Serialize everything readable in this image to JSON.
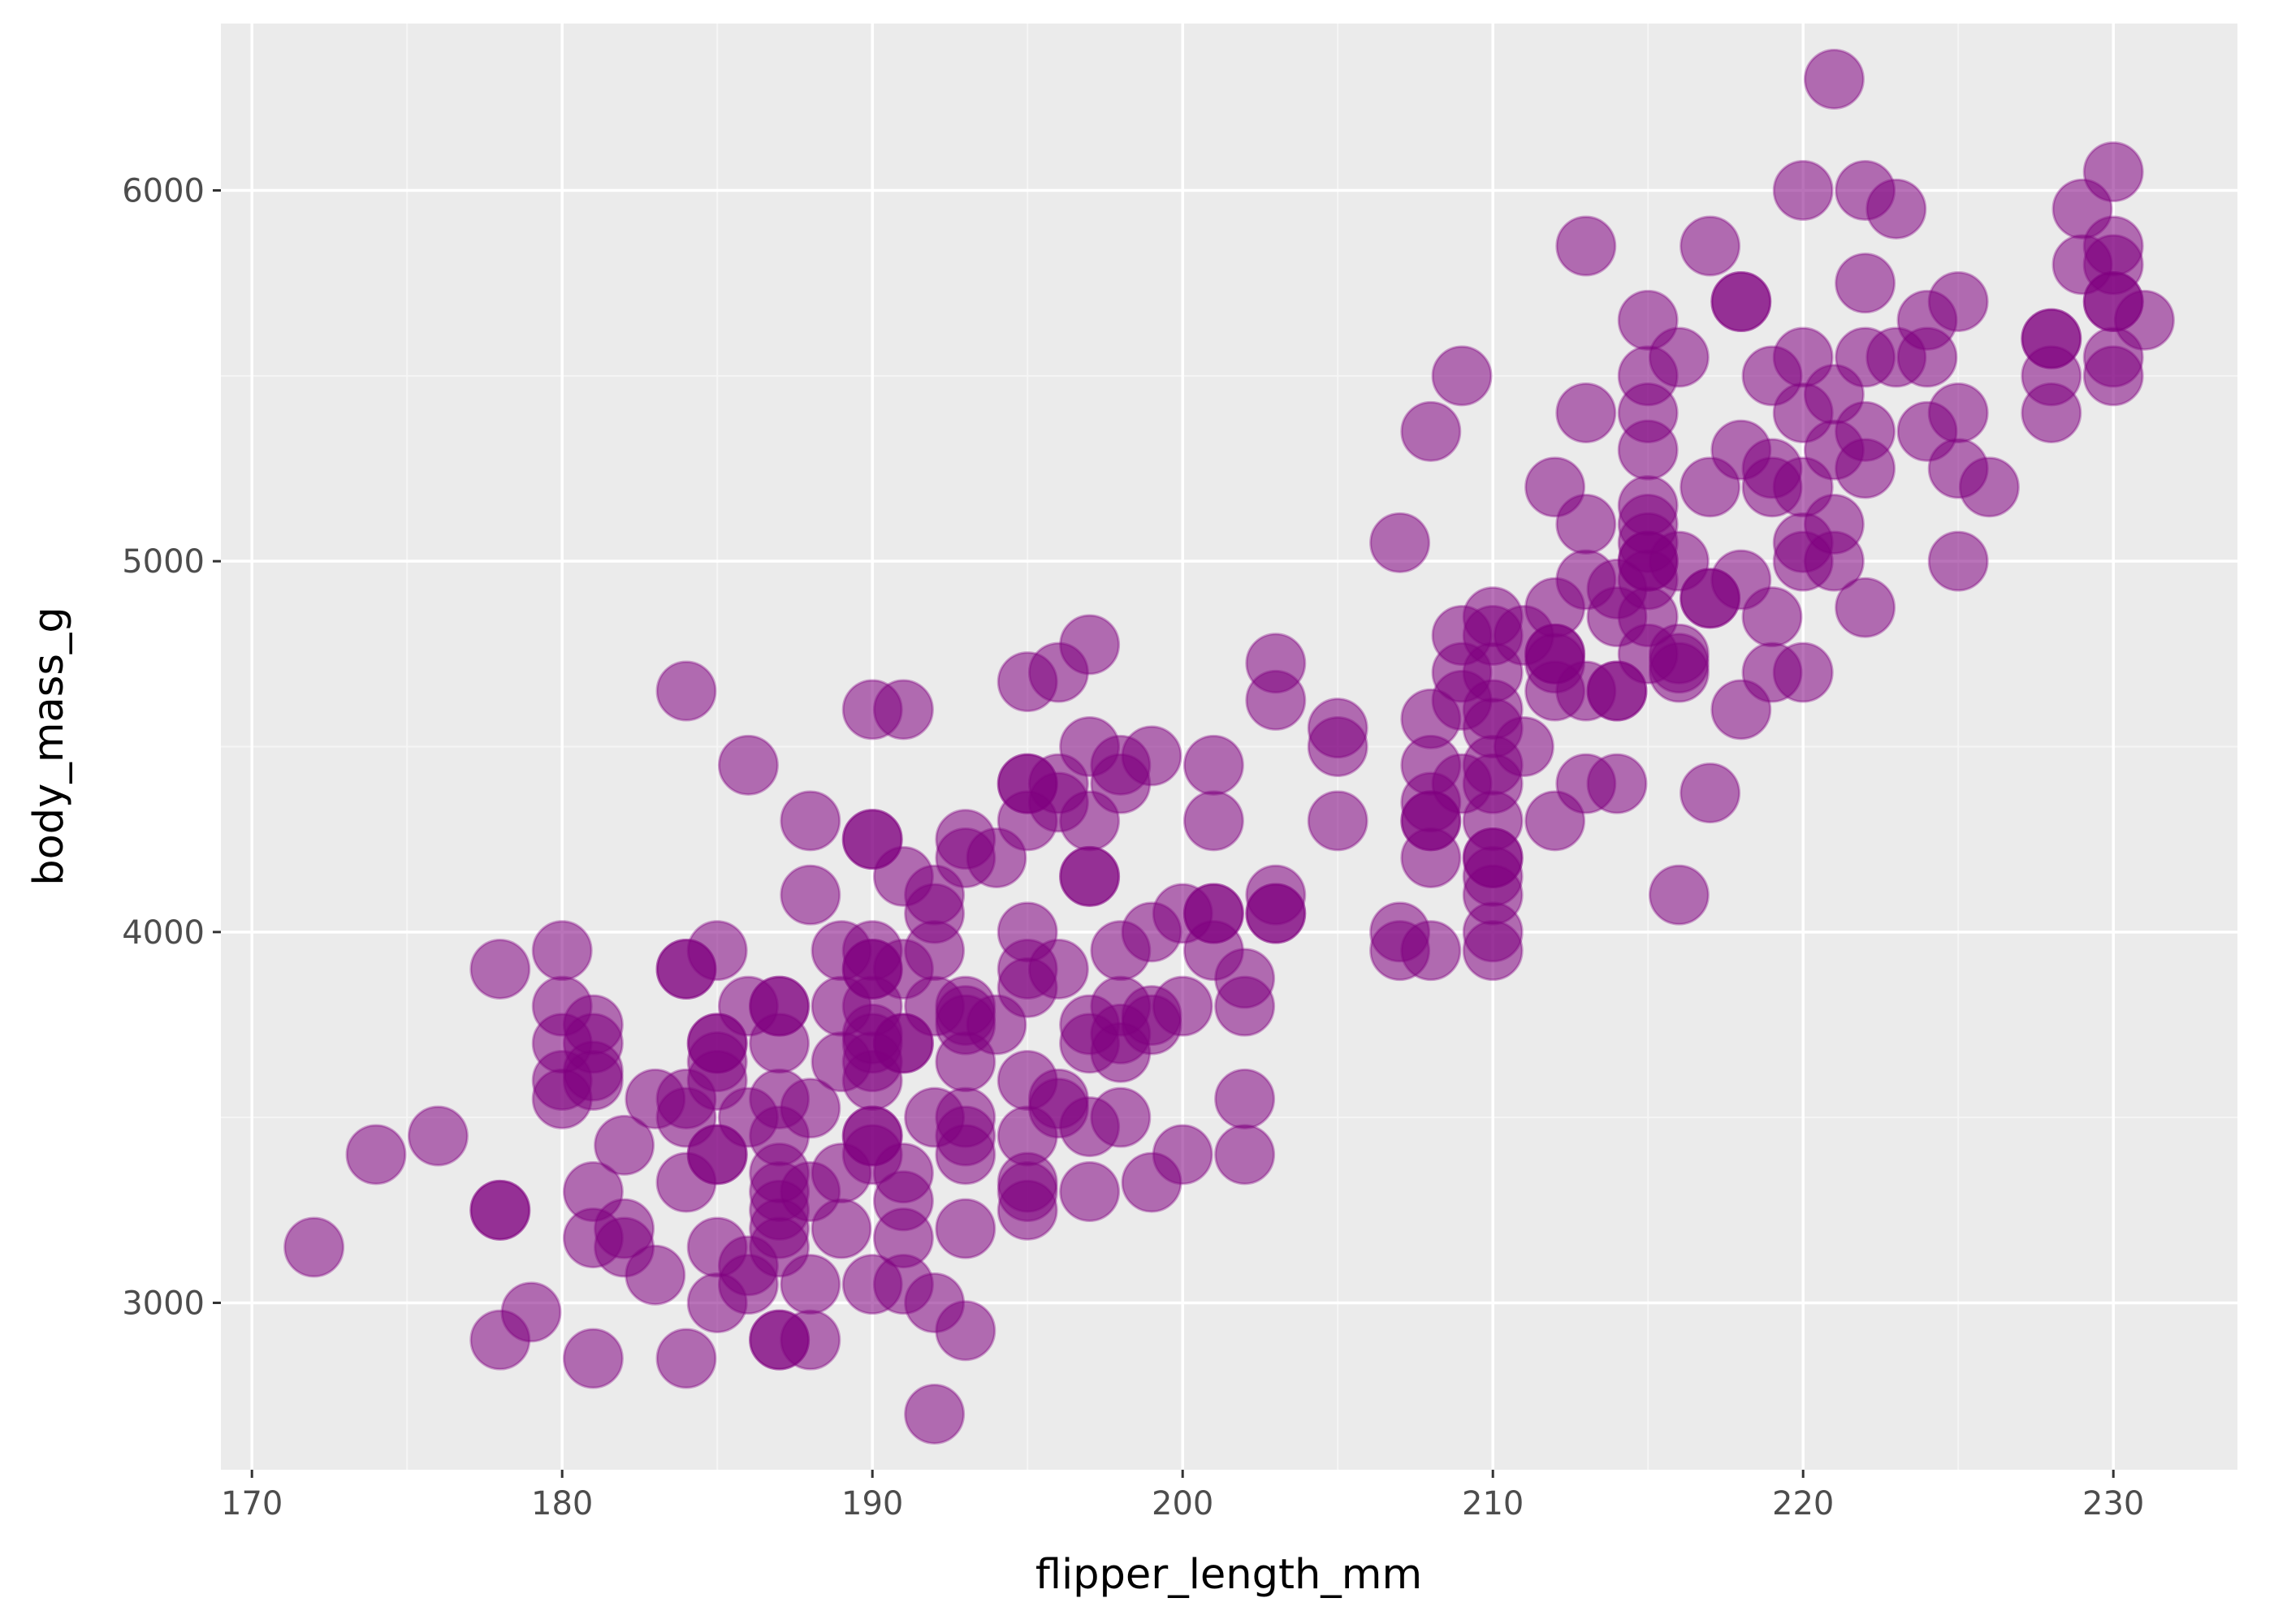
{
  "chart_data": {
    "type": "scatter",
    "title": "",
    "xlabel": "flipper_length_mm",
    "ylabel": "body_mass_g",
    "xlim": [
      169,
      234
    ],
    "ylim": [
      2550,
      6450
    ],
    "x_ticks": [
      170,
      180,
      190,
      200,
      210,
      220,
      230
    ],
    "y_ticks": [
      3000,
      4000,
      5000,
      6000
    ],
    "grid": true,
    "legend": "none",
    "colors": {
      "panel_background": "#ebebeb",
      "grid_major": "#ffffff",
      "grid_minor": "#f5f5f5",
      "point_fill": "#800080",
      "point_alpha": 0.55
    },
    "series": [
      {
        "points": [
          [
            172,
            3150
          ],
          [
            174,
            3400
          ],
          [
            176,
            3450
          ],
          [
            178,
            3900
          ],
          [
            178,
            3250
          ],
          [
            178,
            3250
          ],
          [
            178,
            2900
          ],
          [
            179,
            2975
          ],
          [
            180,
            3950
          ],
          [
            180,
            3800
          ],
          [
            180,
            3700
          ],
          [
            180,
            3600
          ],
          [
            180,
            3550
          ],
          [
            181,
            3750
          ],
          [
            181,
            3700
          ],
          [
            181,
            3625
          ],
          [
            181,
            3600
          ],
          [
            181,
            3300
          ],
          [
            181,
            3175
          ],
          [
            181,
            2850
          ],
          [
            182,
            3425
          ],
          [
            182,
            3200
          ],
          [
            182,
            3150
          ],
          [
            183,
            3550
          ],
          [
            183,
            3075
          ],
          [
            184,
            4650
          ],
          [
            184,
            3900
          ],
          [
            184,
            3900
          ],
          [
            184,
            3550
          ],
          [
            184,
            3500
          ],
          [
            184,
            3325
          ],
          [
            184,
            2850
          ],
          [
            185,
            3950
          ],
          [
            185,
            3700
          ],
          [
            185,
            3700
          ],
          [
            185,
            3650
          ],
          [
            185,
            3600
          ],
          [
            185,
            3400
          ],
          [
            185,
            3400
          ],
          [
            185,
            3150
          ],
          [
            185,
            3000
          ],
          [
            186,
            4450
          ],
          [
            186,
            3800
          ],
          [
            186,
            3500
          ],
          [
            186,
            3100
          ],
          [
            186,
            3050
          ],
          [
            187,
            3800
          ],
          [
            187,
            3800
          ],
          [
            187,
            3700
          ],
          [
            187,
            3550
          ],
          [
            187,
            3450
          ],
          [
            187,
            3350
          ],
          [
            187,
            3300
          ],
          [
            187,
            3250
          ],
          [
            187,
            3200
          ],
          [
            187,
            3150
          ],
          [
            187,
            2900
          ],
          [
            187,
            2900
          ],
          [
            188,
            4300
          ],
          [
            188,
            4100
          ],
          [
            188,
            3525
          ],
          [
            188,
            3300
          ],
          [
            188,
            3050
          ],
          [
            188,
            2900
          ],
          [
            189,
            3950
          ],
          [
            189,
            3800
          ],
          [
            189,
            3650
          ],
          [
            189,
            3350
          ],
          [
            189,
            3200
          ],
          [
            190,
            4600
          ],
          [
            190,
            4250
          ],
          [
            190,
            4250
          ],
          [
            190,
            3950
          ],
          [
            190,
            3900
          ],
          [
            190,
            3900
          ],
          [
            190,
            3800
          ],
          [
            190,
            3725
          ],
          [
            190,
            3700
          ],
          [
            190,
            3650
          ],
          [
            190,
            3600
          ],
          [
            190,
            3450
          ],
          [
            190,
            3450
          ],
          [
            190,
            3400
          ],
          [
            190,
            3050
          ],
          [
            191,
            4600
          ],
          [
            191,
            4150
          ],
          [
            191,
            3900
          ],
          [
            191,
            3700
          ],
          [
            191,
            3700
          ],
          [
            191,
            3350
          ],
          [
            191,
            3275
          ],
          [
            191,
            3175
          ],
          [
            191,
            3050
          ],
          [
            192,
            4100
          ],
          [
            192,
            4050
          ],
          [
            192,
            3950
          ],
          [
            192,
            3800
          ],
          [
            192,
            3500
          ],
          [
            192,
            3000
          ],
          [
            192,
            2700
          ],
          [
            193,
            4250
          ],
          [
            193,
            4200
          ],
          [
            193,
            3800
          ],
          [
            193,
            3775
          ],
          [
            193,
            3750
          ],
          [
            193,
            3650
          ],
          [
            193,
            3500
          ],
          [
            193,
            3450
          ],
          [
            193,
            3400
          ],
          [
            193,
            3200
          ],
          [
            193,
            2925
          ],
          [
            194,
            4200
          ],
          [
            194,
            3750
          ],
          [
            195,
            4675
          ],
          [
            195,
            4400
          ],
          [
            195,
            4400
          ],
          [
            195,
            4300
          ],
          [
            195,
            4000
          ],
          [
            195,
            3900
          ],
          [
            195,
            3850
          ],
          [
            195,
            3600
          ],
          [
            195,
            3450
          ],
          [
            195,
            3325
          ],
          [
            195,
            3300
          ],
          [
            195,
            3250
          ],
          [
            196,
            4700
          ],
          [
            196,
            4400
          ],
          [
            196,
            4350
          ],
          [
            196,
            3900
          ],
          [
            196,
            3550
          ],
          [
            196,
            3525
          ],
          [
            197,
            4775
          ],
          [
            197,
            4500
          ],
          [
            197,
            4300
          ],
          [
            197,
            4150
          ],
          [
            197,
            4150
          ],
          [
            197,
            3750
          ],
          [
            197,
            3700
          ],
          [
            197,
            3475
          ],
          [
            197,
            3300
          ],
          [
            198,
            4450
          ],
          [
            198,
            4400
          ],
          [
            198,
            3950
          ],
          [
            198,
            3800
          ],
          [
            198,
            3725
          ],
          [
            198,
            3675
          ],
          [
            198,
            3500
          ],
          [
            199,
            4475
          ],
          [
            199,
            4000
          ],
          [
            199,
            3775
          ],
          [
            199,
            3750
          ],
          [
            199,
            3325
          ],
          [
            200,
            4050
          ],
          [
            200,
            3800
          ],
          [
            200,
            3400
          ],
          [
            201,
            4450
          ],
          [
            201,
            4300
          ],
          [
            201,
            4050
          ],
          [
            201,
            4050
          ],
          [
            201,
            3950
          ],
          [
            202,
            3875
          ],
          [
            202,
            3800
          ],
          [
            202,
            3550
          ],
          [
            202,
            3400
          ],
          [
            203,
            4725
          ],
          [
            203,
            4625
          ],
          [
            203,
            4100
          ],
          [
            203,
            4050
          ],
          [
            203,
            4050
          ],
          [
            205,
            4550
          ],
          [
            205,
            4500
          ],
          [
            205,
            4300
          ],
          [
            207,
            5050
          ],
          [
            207,
            4000
          ],
          [
            207,
            3950
          ],
          [
            208,
            5350
          ],
          [
            208,
            4575
          ],
          [
            208,
            4450
          ],
          [
            208,
            4350
          ],
          [
            208,
            4300
          ],
          [
            208,
            4300
          ],
          [
            208,
            4200
          ],
          [
            208,
            3950
          ],
          [
            209,
            5500
          ],
          [
            209,
            4800
          ],
          [
            209,
            4700
          ],
          [
            209,
            4625
          ],
          [
            209,
            4400
          ],
          [
            210,
            4850
          ],
          [
            210,
            4800
          ],
          [
            210,
            4700
          ],
          [
            210,
            4600
          ],
          [
            210,
            4550
          ],
          [
            210,
            4450
          ],
          [
            210,
            4400
          ],
          [
            210,
            4300
          ],
          [
            210,
            4200
          ],
          [
            210,
            4200
          ],
          [
            210,
            4150
          ],
          [
            210,
            4100
          ],
          [
            210,
            4000
          ],
          [
            210,
            3950
          ],
          [
            211,
            4800
          ],
          [
            211,
            4500
          ],
          [
            212,
            5200
          ],
          [
            212,
            4875
          ],
          [
            212,
            4750
          ],
          [
            212,
            4750
          ],
          [
            212,
            4725
          ],
          [
            212,
            4650
          ],
          [
            212,
            4300
          ],
          [
            213,
            5850
          ],
          [
            213,
            5400
          ],
          [
            213,
            5100
          ],
          [
            213,
            4950
          ],
          [
            213,
            4650
          ],
          [
            213,
            4400
          ],
          [
            214,
            4925
          ],
          [
            214,
            4850
          ],
          [
            214,
            4650
          ],
          [
            214,
            4650
          ],
          [
            214,
            4400
          ],
          [
            215,
            5650
          ],
          [
            215,
            5500
          ],
          [
            215,
            5400
          ],
          [
            215,
            5300
          ],
          [
            215,
            5150
          ],
          [
            215,
            5100
          ],
          [
            215,
            5050
          ],
          [
            215,
            5000
          ],
          [
            215,
            5000
          ],
          [
            215,
            4950
          ],
          [
            215,
            4850
          ],
          [
            215,
            4750
          ],
          [
            216,
            5550
          ],
          [
            216,
            5000
          ],
          [
            216,
            4750
          ],
          [
            216,
            4725
          ],
          [
            216,
            4700
          ],
          [
            216,
            4100
          ],
          [
            217,
            5850
          ],
          [
            217,
            5200
          ],
          [
            217,
            4900
          ],
          [
            217,
            4900
          ],
          [
            217,
            4375
          ],
          [
            218,
            5700
          ],
          [
            218,
            5700
          ],
          [
            218,
            5300
          ],
          [
            218,
            4950
          ],
          [
            218,
            4600
          ],
          [
            219,
            5500
          ],
          [
            219,
            5250
          ],
          [
            219,
            5200
          ],
          [
            219,
            4850
          ],
          [
            219,
            4700
          ],
          [
            220,
            6000
          ],
          [
            220,
            5550
          ],
          [
            220,
            5400
          ],
          [
            220,
            5200
          ],
          [
            220,
            5050
          ],
          [
            220,
            5000
          ],
          [
            220,
            4700
          ],
          [
            221,
            6300
          ],
          [
            221,
            5450
          ],
          [
            221,
            5300
          ],
          [
            221,
            5100
          ],
          [
            221,
            5000
          ],
          [
            222,
            6000
          ],
          [
            222,
            5750
          ],
          [
            222,
            5550
          ],
          [
            222,
            5350
          ],
          [
            222,
            5250
          ],
          [
            222,
            4875
          ],
          [
            223,
            5950
          ],
          [
            223,
            5550
          ],
          [
            224,
            5650
          ],
          [
            224,
            5550
          ],
          [
            224,
            5350
          ],
          [
            225,
            5700
          ],
          [
            225,
            5400
          ],
          [
            225,
            5250
          ],
          [
            225,
            5000
          ],
          [
            226,
            5200
          ],
          [
            228,
            5600
          ],
          [
            228,
            5600
          ],
          [
            228,
            5500
          ],
          [
            228,
            5400
          ],
          [
            229,
            5950
          ],
          [
            229,
            5800
          ],
          [
            230,
            6050
          ],
          [
            230,
            5850
          ],
          [
            230,
            5800
          ],
          [
            230,
            5700
          ],
          [
            230,
            5700
          ],
          [
            230,
            5550
          ],
          [
            230,
            5500
          ],
          [
            231,
            5650
          ]
        ]
      }
    ]
  }
}
